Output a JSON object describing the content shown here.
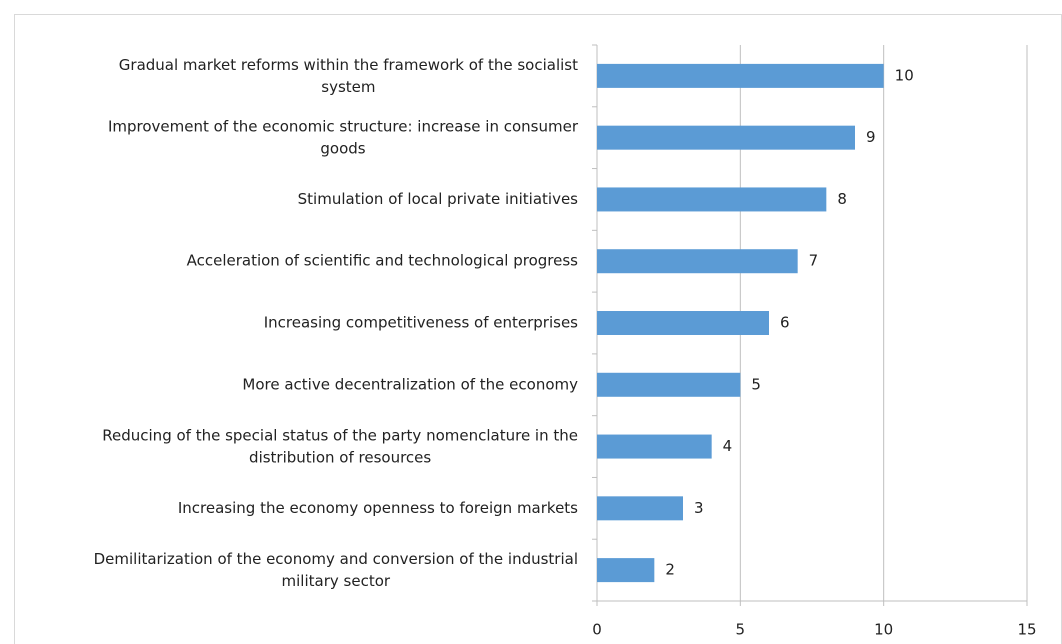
{
  "chart_data": {
    "type": "bar",
    "orientation": "horizontal",
    "categories": [
      "Gradual market reforms within the framework of the socialist system",
      "Improvement of the economic structure: increase in consumer goods",
      "Stimulation of local private initiatives",
      "Acceleration of scientific and technological progress",
      "Increasing competitiveness of enterprises",
      "More active decentralization of the economy",
      "Reducing of the special status of the party nomenclature in the distribution of resources",
      "Increasing the economy openness to foreign markets",
      "Demilitarization of the economy and conversion of the industrial military sector"
    ],
    "values": [
      10,
      9,
      8,
      7,
      6,
      5,
      4,
      3,
      2
    ],
    "color": "#5b9bd5",
    "xlim": [
      0,
      15
    ],
    "xticks": [
      0,
      5,
      10,
      15
    ],
    "grid": true
  }
}
